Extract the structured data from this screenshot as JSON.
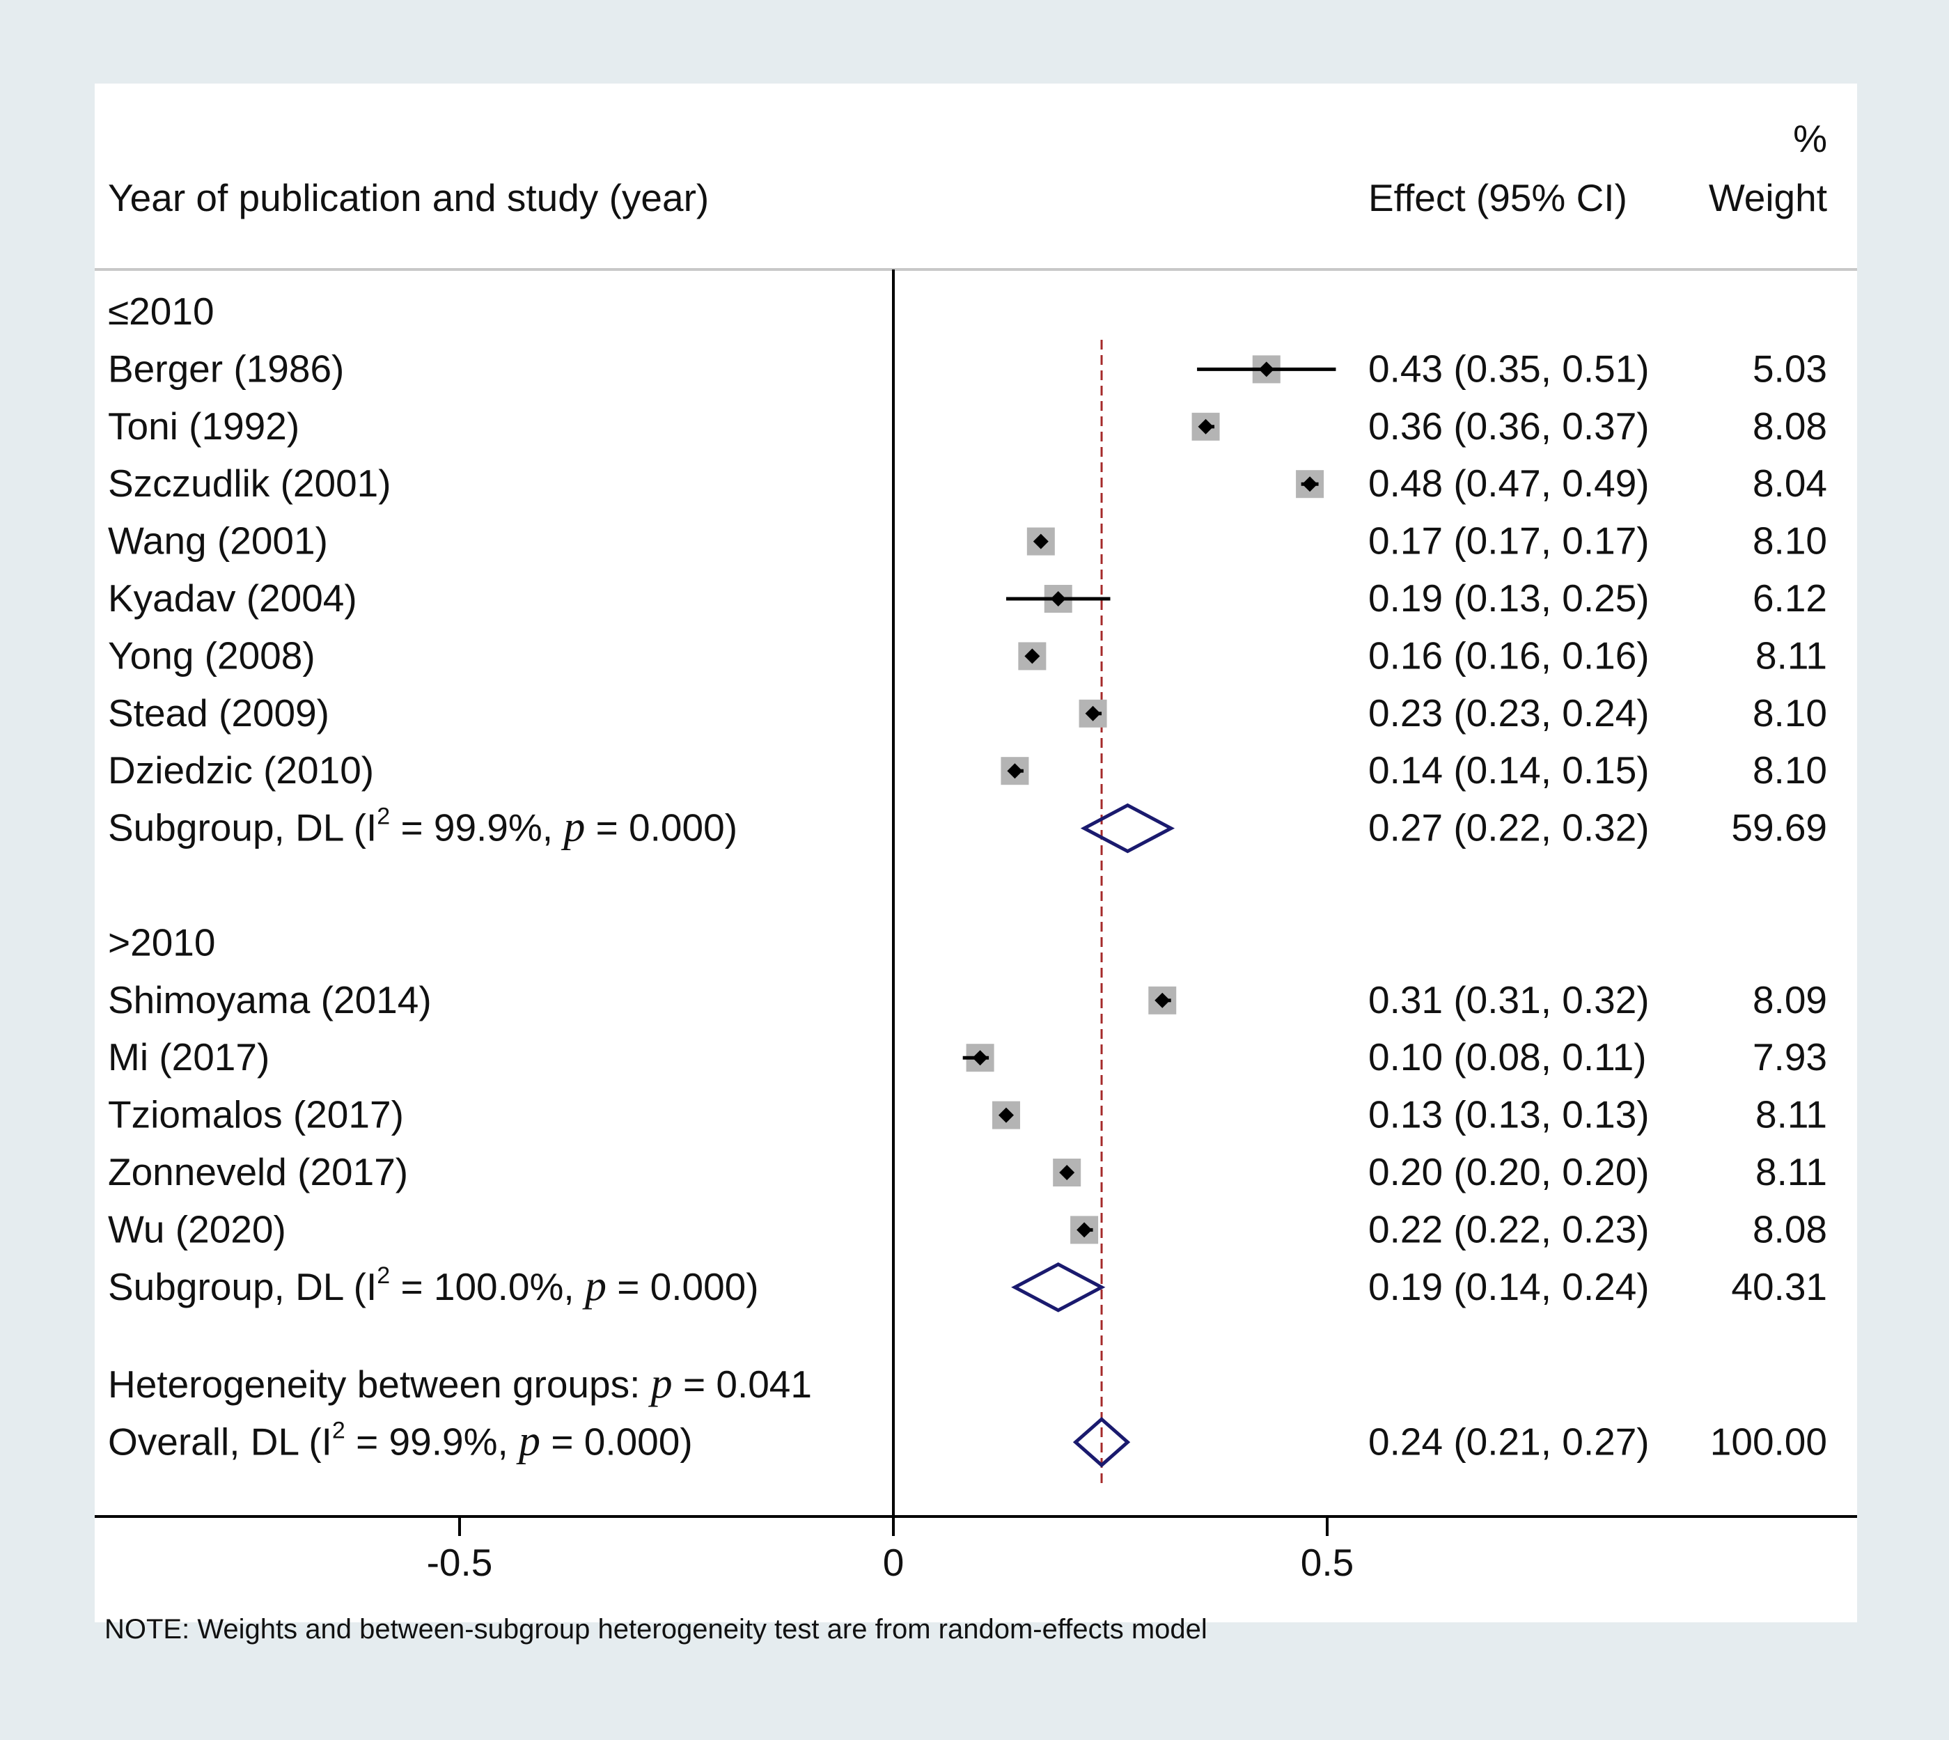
{
  "chart_data": {
    "type": "forest",
    "header": {
      "study_label": "Year of publication and study (year)",
      "effect_label": "Effect (95% CI)",
      "weight_label_top": "%",
      "weight_label": "Weight"
    },
    "x_axis": {
      "range": [
        -0.92,
        1.1
      ],
      "ticks": [
        {
          "value": -0.5,
          "label": "-0.5"
        },
        {
          "value": 0,
          "label": "0"
        },
        {
          "value": 0.5,
          "label": "0.5"
        }
      ],
      "null_line": 0
    },
    "overall_line": 0.24,
    "groups": [
      {
        "label": "≤2010",
        "studies": [
          {
            "label": "Berger (1986)",
            "effect": 0.43,
            "lower": 0.35,
            "upper": 0.51,
            "weight": 5.03,
            "effect_text": "0.43 (0.35, 0.51)",
            "weight_text": "5.03"
          },
          {
            "label": "Toni (1992)",
            "effect": 0.36,
            "lower": 0.36,
            "upper": 0.37,
            "weight": 8.08,
            "effect_text": "0.36 (0.36, 0.37)",
            "weight_text": "8.08"
          },
          {
            "label": "Szczudlik (2001)",
            "effect": 0.48,
            "lower": 0.47,
            "upper": 0.49,
            "weight": 8.04,
            "effect_text": "0.48 (0.47, 0.49)",
            "weight_text": "8.04"
          },
          {
            "label": "Wang (2001)",
            "effect": 0.17,
            "lower": 0.17,
            "upper": 0.17,
            "weight": 8.1,
            "effect_text": "0.17 (0.17, 0.17)",
            "weight_text": "8.10"
          },
          {
            "label": "Kyadav (2004)",
            "effect": 0.19,
            "lower": 0.13,
            "upper": 0.25,
            "weight": 6.12,
            "effect_text": "0.19 (0.13, 0.25)",
            "weight_text": "6.12"
          },
          {
            "label": "Yong (2008)",
            "effect": 0.16,
            "lower": 0.16,
            "upper": 0.16,
            "weight": 8.11,
            "effect_text": "0.16 (0.16, 0.16)",
            "weight_text": "8.11"
          },
          {
            "label": "Stead (2009)",
            "effect": 0.23,
            "lower": 0.23,
            "upper": 0.24,
            "weight": 8.1,
            "effect_text": "0.23 (0.23, 0.24)",
            "weight_text": "8.10"
          },
          {
            "label": "Dziedzic (2010)",
            "effect": 0.14,
            "lower": 0.14,
            "upper": 0.15,
            "weight": 8.1,
            "effect_text": "0.14 (0.14, 0.15)",
            "weight_text": "8.10"
          }
        ],
        "subgroup": {
          "prefix": "Subgroup, DL (I",
          "sup": "2",
          "i2": " = 99.9%, ",
          "p_symbol": "p",
          "p_text": " = 0.000)",
          "effect": 0.27,
          "lower": 0.22,
          "upper": 0.32,
          "effect_text": "0.27 (0.22, 0.32)",
          "weight_text": "59.69"
        }
      },
      {
        "label": ">2010",
        "studies": [
          {
            "label": "Shimoyama (2014)",
            "effect": 0.31,
            "lower": 0.31,
            "upper": 0.32,
            "weight": 8.09,
            "effect_text": "0.31 (0.31, 0.32)",
            "weight_text": "8.09"
          },
          {
            "label": "Mi (2017)",
            "effect": 0.1,
            "lower": 0.08,
            "upper": 0.11,
            "weight": 7.93,
            "effect_text": "0.10 (0.08, 0.11)",
            "weight_text": "7.93"
          },
          {
            "label": "Tziomalos (2017)",
            "effect": 0.13,
            "lower": 0.13,
            "upper": 0.13,
            "weight": 8.11,
            "effect_text": "0.13 (0.13, 0.13)",
            "weight_text": "8.11"
          },
          {
            "label": "Zonneveld (2017)",
            "effect": 0.2,
            "lower": 0.2,
            "upper": 0.2,
            "weight": 8.11,
            "effect_text": "0.20 (0.20, 0.20)",
            "weight_text": "8.11"
          },
          {
            "label": "Wu (2020)",
            "effect": 0.22,
            "lower": 0.22,
            "upper": 0.23,
            "weight": 8.08,
            "effect_text": "0.22 (0.22, 0.23)",
            "weight_text": "8.08"
          }
        ],
        "subgroup": {
          "prefix": "Subgroup, DL (I",
          "sup": "2",
          "i2": " = 100.0%, ",
          "p_symbol": "p",
          "p_text": " = 0.000)",
          "effect": 0.19,
          "lower": 0.14,
          "upper": 0.24,
          "effect_text": "0.19 (0.14, 0.24)",
          "weight_text": "40.31"
        }
      }
    ],
    "heterogeneity": {
      "prefix": "Heterogeneity between groups: ",
      "p_symbol": "p",
      "p_text": " = 0.041"
    },
    "overall": {
      "prefix": "Overall, DL (I",
      "sup": "2",
      "i2": " = 99.9%, ",
      "p_symbol": "p",
      "p_text": " = 0.000)",
      "effect": 0.24,
      "lower": 0.21,
      "upper": 0.27,
      "effect_text": "0.24 (0.21, 0.27)",
      "weight_text": "100.00"
    },
    "note": "NOTE: Weights and between-subgroup heterogeneity test are from random-effects model",
    "colors": {
      "outer_bg": "#e5ecef",
      "plot_bg": "#ffffff",
      "text": "#111111",
      "box": "#b4b4b4",
      "marker": "#000000",
      "diamond": "#1a1a6e",
      "ref_line": "#a52a2a",
      "axis": "#000000",
      "rule": "#c8c8c8"
    }
  }
}
